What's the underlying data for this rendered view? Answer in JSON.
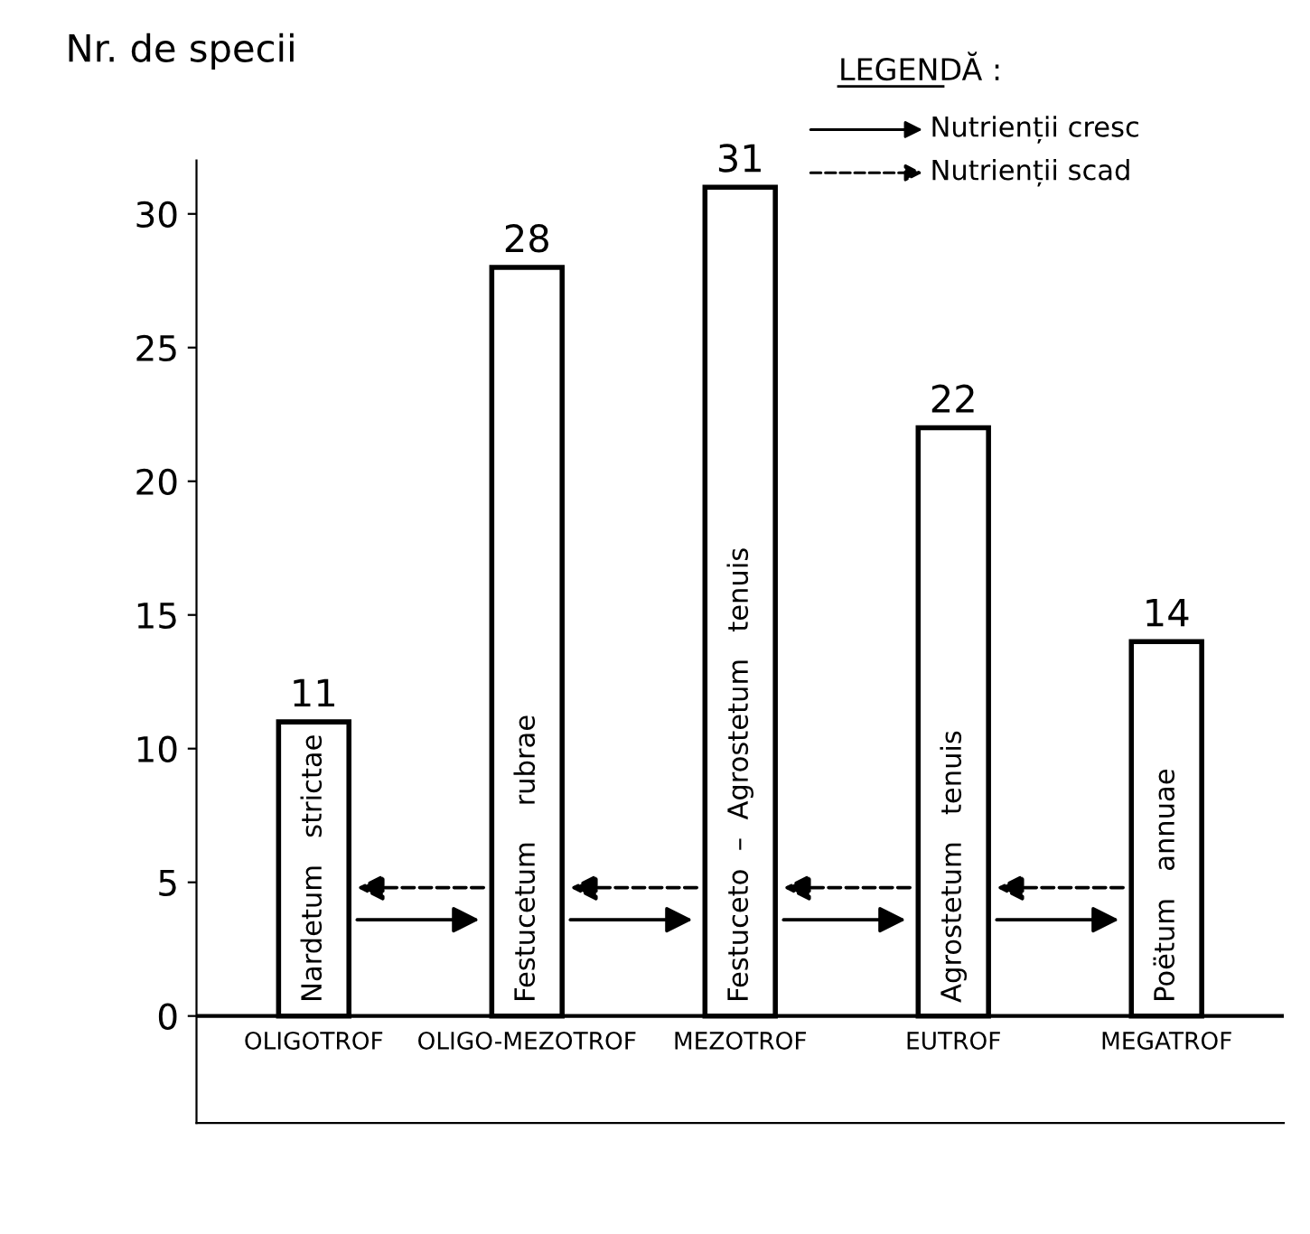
{
  "chart_data": {
    "type": "bar",
    "ylabel": "Nr. de specii",
    "categories": [
      "OLIGOTROF",
      "OLIGO-MEZOTROF",
      "MEZOTROF",
      "EUTROF",
      "MEGATROF"
    ],
    "values": [
      11,
      28,
      31,
      22,
      14
    ],
    "color": "#ffffff",
    "data_labels": true,
    "ylim": [
      -4,
      32
    ],
    "yticks": [
      0,
      5,
      10,
      15,
      20,
      25,
      30
    ],
    "grid": false,
    "annotations": [
      "Nardetum   strictae",
      "Festucetum    rubrae",
      "Festuceto  –  Agrostetum   tenuis",
      "Agrostetum   tenuis",
      "Poëtum   annuae",
      "LEGENDĂ :",
      "Nutrienții cresc",
      "Nutrienții scad"
    ]
  }
}
